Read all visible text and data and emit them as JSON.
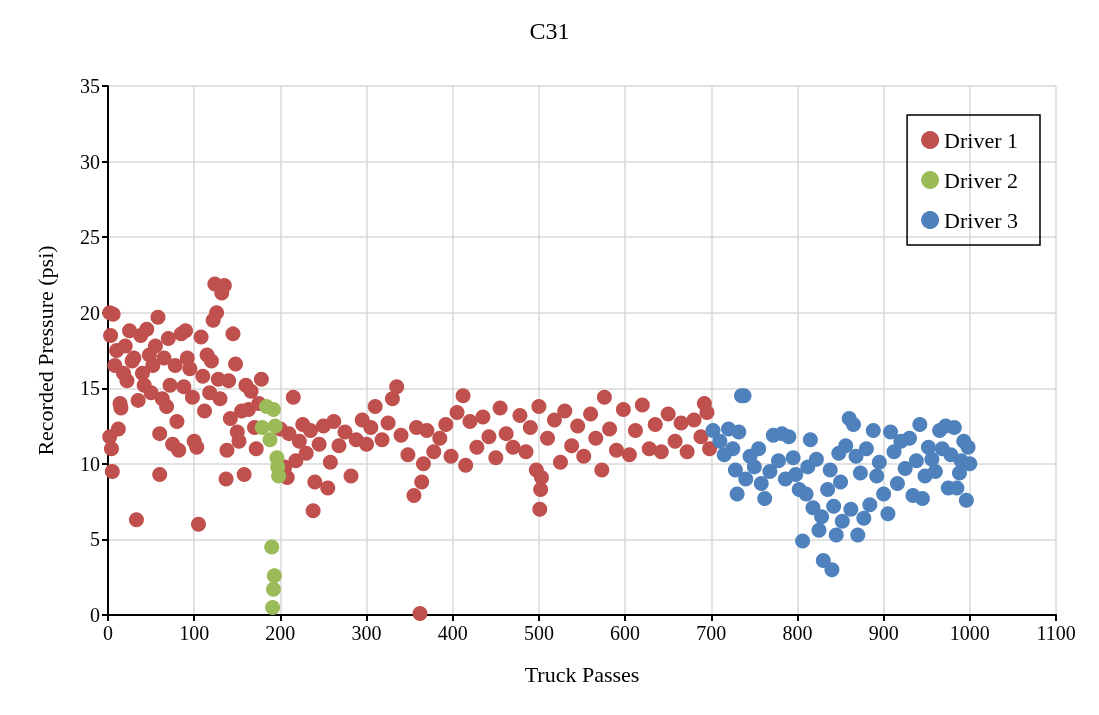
{
  "chart_data": {
    "type": "scatter",
    "title": "C31",
    "xlabel": "Truck Passes",
    "ylabel": "Recorded Pressure (psi)",
    "xlim": [
      0,
      1100
    ],
    "xticks": [
      0,
      100,
      200,
      300,
      400,
      500,
      600,
      700,
      800,
      900,
      1000,
      1100
    ],
    "ylim": [
      0,
      35
    ],
    "yticks": [
      0,
      5,
      10,
      15,
      20,
      25,
      30,
      35
    ],
    "grid": true,
    "legend": "top right",
    "marker": "circle",
    "series": [
      {
        "name": "Driver 1",
        "color": "#c0504d",
        "x": [
          2,
          6,
          3,
          2,
          4,
          5,
          8,
          10,
          12,
          14,
          15,
          18,
          20,
          22,
          25,
          28,
          30,
          33,
          35,
          38,
          40,
          42,
          45,
          48,
          50,
          52,
          55,
          58,
          60,
          60,
          63,
          65,
          68,
          70,
          72,
          75,
          78,
          80,
          82,
          85,
          88,
          90,
          92,
          95,
          98,
          100,
          103,
          105,
          108,
          110,
          112,
          115,
          118,
          120,
          122,
          124,
          126,
          128,
          130,
          132,
          135,
          137,
          138,
          140,
          142,
          145,
          148,
          150,
          152,
          155,
          158,
          160,
          163,
          166,
          170,
          172,
          175,
          178,
          200,
          205,
          208,
          210,
          215,
          218,
          222,
          226,
          230,
          235,
          238,
          240,
          245,
          250,
          255,
          258,
          262,
          268,
          275,
          282,
          288,
          295,
          300,
          305,
          310,
          318,
          325,
          330,
          335,
          340,
          348,
          355,
          358,
          362,
          364,
          366,
          370,
          378,
          385,
          392,
          398,
          405,
          412,
          415,
          420,
          428,
          435,
          442,
          450,
          455,
          462,
          470,
          478,
          485,
          490,
          497,
          500,
          501,
          502,
          503,
          510,
          518,
          525,
          530,
          538,
          545,
          552,
          560,
          566,
          573,
          576,
          582,
          590,
          598,
          605,
          612,
          620,
          628,
          635,
          642,
          650,
          658,
          665,
          672,
          680,
          688,
          692,
          695,
          698
        ],
        "values": [
          20,
          19.9,
          18.5,
          11.8,
          11,
          9.5,
          16.5,
          17.5,
          12.3,
          14,
          13.7,
          16,
          17.8,
          15.5,
          18.8,
          16.8,
          17,
          6.3,
          14.2,
          18.5,
          16,
          15.2,
          18.9,
          17.2,
          14.7,
          16.5,
          17.8,
          19.7,
          9.3,
          12,
          14.3,
          17,
          13.8,
          18.3,
          15.2,
          11.3,
          16.5,
          12.8,
          10.9,
          18.6,
          15.1,
          18.8,
          17,
          16.3,
          14.4,
          11.5,
          11.1,
          6,
          18.4,
          15.8,
          13.5,
          17.2,
          14.7,
          16.8,
          19.5,
          21.9,
          20,
          15.6,
          14.3,
          21.3,
          21.8,
          9,
          10.9,
          15.5,
          13,
          18.6,
          16.6,
          12.1,
          11.5,
          13.5,
          9.3,
          15.2,
          13.6,
          14.8,
          12.4,
          11,
          14,
          15.6,
          12.3,
          9.8,
          9.1,
          12,
          14.4,
          10.2,
          11.5,
          12.6,
          10.7,
          12.2,
          6.9,
          8.8,
          11.3,
          12.5,
          8.4,
          10.1,
          12.8,
          11.2,
          12.1,
          9.2,
          11.6,
          12.9,
          11.3,
          12.4,
          13.8,
          11.6,
          12.7,
          14.3,
          15.1,
          11.9,
          10.6,
          7.9,
          12.4,
          0.1,
          8.8,
          10,
          12.2,
          10.8,
          11.7,
          12.6,
          10.5,
          13.4,
          14.5,
          9.9,
          12.8,
          11.1,
          13.1,
          11.8,
          10.4,
          13.7,
          12,
          11.1,
          13.2,
          10.8,
          12.4,
          9.6,
          13.8,
          7,
          8.3,
          9.1,
          11.7,
          12.9,
          10.1,
          13.5,
          11.2,
          12.5,
          10.5,
          13.3,
          11.7,
          9.6,
          14.4,
          12.3,
          10.9,
          13.6,
          10.6,
          12.2,
          13.9,
          11,
          12.6,
          10.8,
          13.3,
          11.5,
          12.7,
          10.8,
          12.9,
          11.8,
          14,
          13.4,
          11
        ]
      },
      {
        "name": "Driver 2",
        "color": "#9bbb59",
        "x": [
          179,
          184,
          188,
          192,
          194,
          196,
          197,
          198,
          190,
          193,
          192,
          191
        ],
        "values": [
          12.4,
          13.8,
          11.6,
          13.6,
          12.5,
          10.4,
          9.8,
          9.2,
          4.5,
          2.6,
          1.7,
          0.5
        ]
      },
      {
        "name": "Driver 3",
        "color": "#4f81bd",
        "x": [
          735,
          738,
          702,
          710,
          715,
          720,
          725,
          728,
          730,
          732,
          740,
          745,
          750,
          755,
          758,
          762,
          768,
          772,
          778,
          782,
          786,
          790,
          795,
          798,
          802,
          806,
          810,
          812,
          815,
          818,
          822,
          825,
          828,
          830,
          835,
          838,
          840,
          842,
          845,
          848,
          850,
          852,
          856,
          860,
          862,
          865,
          868,
          870,
          873,
          877,
          880,
          884,
          888,
          892,
          895,
          900,
          905,
          908,
          912,
          916,
          920,
          925,
          930,
          934,
          938,
          942,
          945,
          948,
          952,
          956,
          960,
          965,
          968,
          972,
          975,
          978,
          982,
          985,
          988,
          990,
          993,
          996,
          998,
          1000
        ],
        "values": [
          14.5,
          14.5,
          12.2,
          11.5,
          10.6,
          12.3,
          11,
          9.6,
          8,
          12.1,
          9,
          10.5,
          9.8,
          11,
          8.7,
          7.7,
          9.5,
          11.9,
          10.2,
          12,
          9,
          11.8,
          10.4,
          9.3,
          8.3,
          4.9,
          8,
          9.8,
          11.6,
          7.1,
          10.3,
          5.6,
          6.5,
          3.6,
          8.3,
          9.6,
          3,
          7.2,
          5.3,
          10.7,
          8.8,
          6.2,
          11.2,
          13,
          7,
          12.6,
          10.5,
          5.3,
          9.4,
          6.4,
          11,
          7.3,
          12.2,
          9.2,
          10.1,
          8,
          6.7,
          12.1,
          10.8,
          8.7,
          11.5,
          9.7,
          11.7,
          7.9,
          10.2,
          12.6,
          7.7,
          9.2,
          11.1,
          10.3,
          9.5,
          12.2,
          11,
          12.5,
          8.4,
          10.6,
          12.4,
          8.4,
          9.4,
          10.2,
          11.5,
          7.6,
          11.1,
          10
        ]
      }
    ]
  }
}
